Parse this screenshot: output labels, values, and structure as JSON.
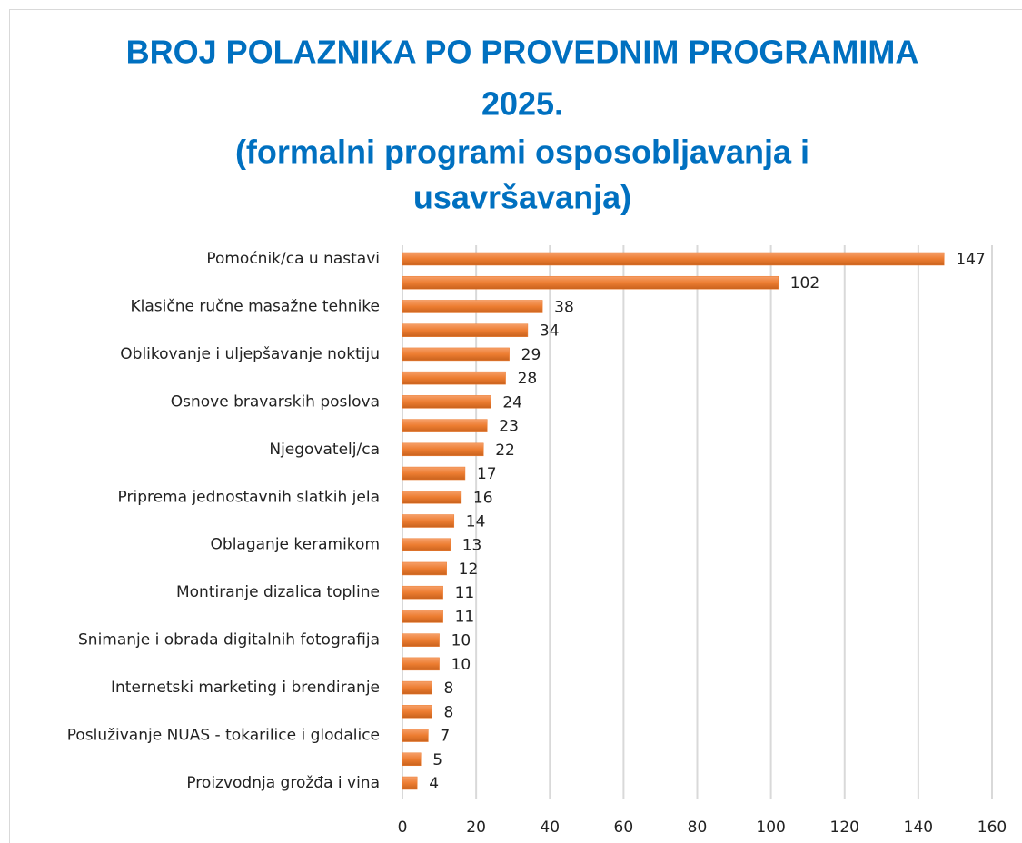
{
  "chart_data": {
    "type": "bar",
    "orientation": "horizontal",
    "title": [
      "BROJ POLAZNIKA PO PROVEDNIM PROGRAMIMA",
      "2025.",
      "(formalni programi osposobljavanja i",
      "usavršavanja)"
    ],
    "categories": [
      "Pomoćnik/ca u nastavi",
      null,
      "Klasične ručne masažne tehnike",
      null,
      "Oblikovanje i uljepšavanje noktiju",
      null,
      "Osnove bravarskih poslova",
      null,
      "Njegovatelj/ca",
      null,
      "Priprema jednostavnih slatkih jela",
      null,
      "Oblaganje keramikom",
      null,
      "Montiranje dizalica topline",
      null,
      "Snimanje i obrada digitalnih fotografija",
      null,
      "Internetski marketing i brendiranje",
      null,
      "Posluživanje NUAS - tokarilice i glodalice",
      null,
      "Proizvodnja grožđa i vina"
    ],
    "values": [
      147,
      102,
      38,
      34,
      29,
      28,
      24,
      23,
      22,
      17,
      16,
      14,
      13,
      12,
      11,
      11,
      10,
      10,
      8,
      8,
      7,
      5,
      4
    ],
    "color": "#ed7d31",
    "xlim": [
      0,
      160
    ],
    "xticks": [
      0,
      20,
      40,
      60,
      80,
      100,
      120,
      140,
      160
    ],
    "grid": true
  }
}
